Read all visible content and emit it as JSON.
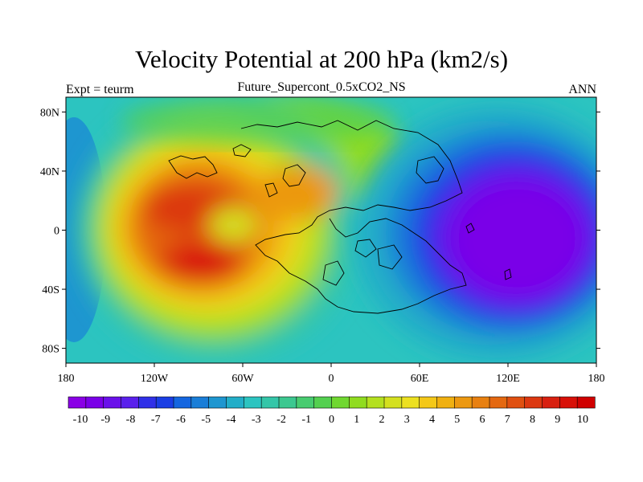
{
  "title": "Velocity Potential at 200 hPa (km2/s)",
  "subtitle": "Future_Supercont_0.5xCO2_NS",
  "left_label": "Expt = teurm",
  "right_label": "ANN",
  "map": {
    "projection": "cylindrical equidistant",
    "lon_range": [
      -180,
      180
    ],
    "lat_range": [
      -90,
      90
    ],
    "x_ticks": [
      "180",
      "120W",
      "60W",
      "0",
      "60E",
      "120E",
      "180"
    ],
    "y_ticks": [
      "80N",
      "40N",
      "0",
      "40S",
      "80S"
    ]
  },
  "colorbar": {
    "labels": [
      "-10",
      "-9",
      "-8",
      "-7",
      "-6",
      "-5",
      "-4",
      "-3",
      "-2",
      "-1",
      "0",
      "1",
      "2",
      "3",
      "4",
      "5",
      "6",
      "7",
      "8",
      "9",
      "10"
    ],
    "colors": [
      "#8a00e6",
      "#7a00e8",
      "#6a10ea",
      "#5a20ec",
      "#3030e8",
      "#1a3ee4",
      "#1466e0",
      "#1a7ed8",
      "#1e96d0",
      "#22aec8",
      "#2cc4c0",
      "#34c6a8",
      "#3cc890",
      "#48cc70",
      "#54d050",
      "#70d830",
      "#90dc20",
      "#b4e020",
      "#d4e020",
      "#ece020",
      "#f4c818",
      "#f0b010",
      "#ec9810",
      "#e88010",
      "#e46810",
      "#e05010",
      "#dc3810",
      "#d82010",
      "#d81008",
      "#d00000"
    ],
    "min": -10,
    "max": 10
  },
  "chart_data": {
    "type": "heatmap",
    "field": "velocity potential at 200 hPa",
    "units": "km2/s",
    "centers": [
      {
        "lon": -80,
        "lat": 15,
        "value": 9.5
      },
      {
        "lon": -85,
        "lat": -25,
        "value": 9.8
      },
      {
        "lon": 140,
        "lat": -5,
        "value": -9.5
      }
    ]
  }
}
